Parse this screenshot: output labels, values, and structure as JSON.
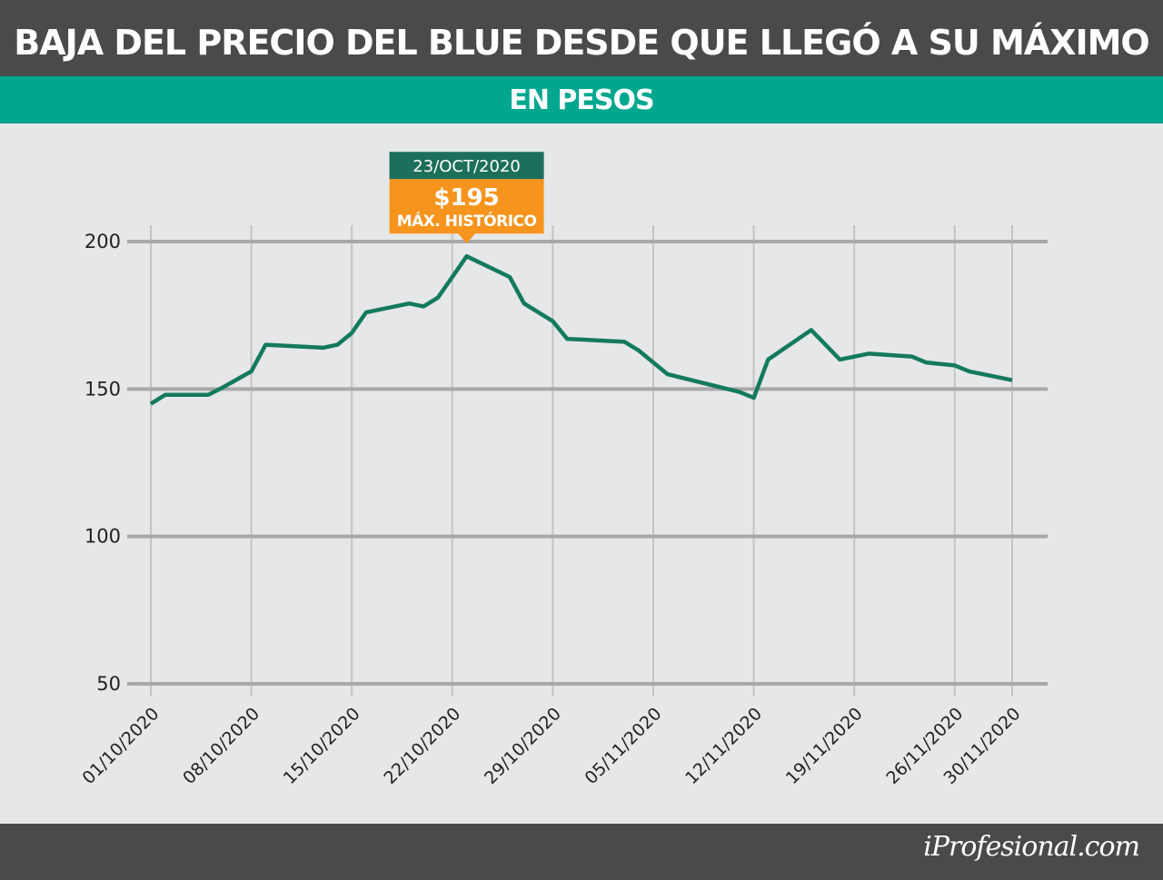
{
  "chart_data": {
    "type": "line",
    "title": "BAJA DEL PRECIO DEL BLUE DESDE QUE LLEGÓ A SU MÁXIMO",
    "subtitle": "EN PESOS",
    "x": [
      "01/10/2020",
      "02/10/2020",
      "05/10/2020",
      "06/10/2020",
      "08/10/2020",
      "09/10/2020",
      "13/10/2020",
      "14/10/2020",
      "15/10/2020",
      "16/10/2020",
      "19/10/2020",
      "20/10/2020",
      "21/10/2020",
      "22/10/2020",
      "23/10/2020",
      "26/10/2020",
      "27/10/2020",
      "29/10/2020",
      "30/10/2020",
      "03/11/2020",
      "04/11/2020",
      "06/11/2020",
      "11/11/2020",
      "12/11/2020",
      "13/11/2020",
      "16/11/2020",
      "18/11/2020",
      "20/11/2020",
      "23/11/2020",
      "24/11/2020",
      "26/11/2020",
      "27/11/2020",
      "30/11/2020"
    ],
    "series": [
      {
        "color": "#137a5e",
        "values": [
          145,
          148,
          148,
          150.5,
          156,
          165,
          164,
          165,
          169,
          176,
          179,
          178,
          181,
          188,
          195,
          188,
          179,
          173,
          167,
          166,
          163,
          155,
          149,
          147,
          160,
          170,
          160,
          162,
          161,
          159,
          158,
          156,
          153
        ]
      }
    ],
    "xticks": [
      "01/10/2020",
      "08/10/2020",
      "15/10/2020",
      "22/10/2020",
      "29/10/2020",
      "05/11/2020",
      "12/11/2020",
      "19/11/2020",
      "26/11/2020",
      "30/11/2020"
    ],
    "ylim": [
      50,
      200
    ],
    "yticks": [
      50,
      100,
      150,
      200
    ],
    "grid": true,
    "annotation": {
      "date": "23/OCT/2020",
      "value_label": "$195",
      "note": "MÁX. HISTÓRICO"
    }
  },
  "footer": {
    "brand": "iProfesional.com"
  }
}
